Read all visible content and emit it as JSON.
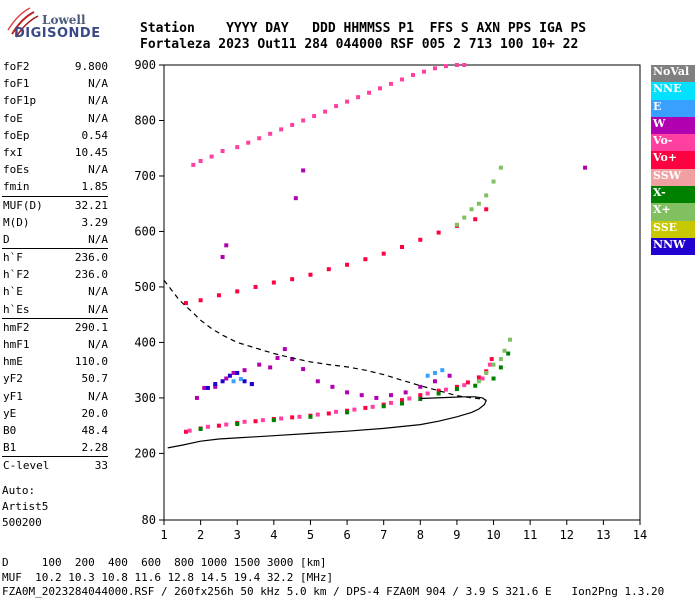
{
  "logo": {
    "line1": "Lowell",
    "line2": "DIGISONDE"
  },
  "header": {
    "line1": "Station    YYYY DAY   DDD HHMMSS P1  FFS S AXN PPS IGA PS",
    "line2": "Fortaleza 2023 Out11 284 044000 RSF 005 2 713 100 10+ 22"
  },
  "params": [
    [
      {
        "name": "foF2",
        "value": "9.800"
      },
      {
        "name": "foF1",
        "value": "N/A"
      },
      {
        "name": "foF1p",
        "value": "N/A"
      },
      {
        "name": "foE",
        "value": "N/A"
      },
      {
        "name": "foEp",
        "value": "0.54"
      },
      {
        "name": "fxI",
        "value": "10.45"
      },
      {
        "name": "foEs",
        "value": "N/A"
      },
      {
        "name": "fmin",
        "value": "1.85"
      }
    ],
    [
      {
        "name": "MUF(D)",
        "value": "32.21"
      },
      {
        "name": "M(D)",
        "value": "3.29"
      },
      {
        "name": "D",
        "value": "N/A"
      }
    ],
    [
      {
        "name": "h`F",
        "value": "236.0"
      },
      {
        "name": "h`F2",
        "value": "236.0"
      },
      {
        "name": "h`E",
        "value": "N/A"
      },
      {
        "name": "h`Es",
        "value": "N/A"
      }
    ],
    [
      {
        "name": "hmF2",
        "value": "290.1"
      },
      {
        "name": "hmF1",
        "value": "N/A"
      },
      {
        "name": "hmE",
        "value": "110.0"
      },
      {
        "name": "yF2",
        "value": "50.7"
      },
      {
        "name": "yF1",
        "value": "N/A"
      },
      {
        "name": "yE",
        "value": "20.0"
      },
      {
        "name": "B0",
        "value": "48.4"
      },
      {
        "name": "B1",
        "value": "2.28"
      }
    ],
    [
      {
        "name": "C-level",
        "value": "33"
      }
    ]
  ],
  "auto": {
    "l1": "Auto:",
    "l2": "Artist5",
    "l3": "500200"
  },
  "legend": [
    {
      "label": "NoVal",
      "color": "#808080"
    },
    {
      "label": "NNE",
      "color": "#00e0ff"
    },
    {
      "label": "E",
      "color": "#3aa0ff"
    },
    {
      "label": "W",
      "color": "#b000b0"
    },
    {
      "label": "Vo-",
      "color": "#ff40a0"
    },
    {
      "label": "Vo+",
      "color": "#ff0040"
    },
    {
      "label": "SSW",
      "color": "#f0a0a0"
    },
    {
      "label": "X-",
      "color": "#008000"
    },
    {
      "label": "X+",
      "color": "#80c060"
    },
    {
      "label": "SSE",
      "color": "#c8c800"
    },
    {
      "label": "NNW",
      "color": "#2000d0"
    }
  ],
  "footer": {
    "l1": "D     100  200  400  600  800 1000 1500 3000 [km]",
    "l2": "MUF  10.2 10.3 10.8 11.6 12.8 14.5 19.4 32.2 [MHz]",
    "l3": "FZA0M_2023284044000.RSF / 260fx256h 50 kHz 5.0 km / DPS-4 FZA0M 904 / 3.9 S 321.6 E   Ion2Png 1.3.20"
  },
  "chart_data": {
    "type": "scatter",
    "title": "",
    "xlabel": "",
    "ylabel": "",
    "xlim": [
      1,
      14
    ],
    "ylim": [
      80,
      900
    ],
    "x_ticks": [
      1,
      2,
      3,
      4,
      5,
      6,
      7,
      8,
      9,
      10,
      11,
      12,
      13,
      14
    ],
    "y_ticks": [
      80,
      200,
      300,
      400,
      500,
      600,
      700,
      800,
      900
    ],
    "grid": false,
    "legend_position": "right",
    "series": [
      {
        "color": "#ff0040",
        "x": [
          1.6,
          2.0,
          2.5,
          3.0,
          3.5,
          4.0,
          4.5,
          5.0,
          5.5,
          6.0,
          6.5,
          7.0,
          7.5,
          8.0,
          8.5,
          9.0,
          9.3,
          9.6,
          9.8,
          9.95
        ],
        "y": [
          239,
          245,
          250,
          255,
          258,
          262,
          265,
          268,
          272,
          277,
          282,
          288,
          296,
          305,
          313,
          320,
          328,
          337,
          348,
          370
        ]
      },
      {
        "color": "#ff40a0",
        "x": [
          1.7,
          2.2,
          2.7,
          3.2,
          3.7,
          4.2,
          4.7,
          5.2,
          5.7,
          6.2,
          6.7,
          7.2,
          7.7,
          8.2,
          8.7,
          9.2,
          9.7,
          9.9
        ],
        "y": [
          241,
          248,
          252,
          257,
          260,
          263,
          266,
          270,
          275,
          279,
          284,
          291,
          299,
          308,
          315,
          323,
          335,
          360
        ]
      },
      {
        "color": "#b000b0",
        "x": [
          1.9,
          2.1,
          2.4,
          2.7,
          2.9,
          3.2,
          3.4,
          3.6,
          3.9,
          4.1,
          4.3,
          4.5,
          4.8,
          5.2,
          5.6,
          6.0,
          6.4,
          6.8,
          7.2,
          7.6,
          8.0,
          8.4,
          8.8
        ],
        "y": [
          300,
          318,
          320,
          335,
          345,
          350,
          325,
          360,
          355,
          372,
          388,
          370,
          352,
          330,
          320,
          310,
          305,
          300,
          305,
          310,
          320,
          330,
          340
        ]
      },
      {
        "color": "#2000d0",
        "x": [
          2.2,
          2.4,
          2.6,
          2.8,
          3.0,
          3.2,
          3.4
        ],
        "y": [
          318,
          325,
          330,
          340,
          345,
          330,
          325
        ]
      },
      {
        "color": "#3aa0ff",
        "x": [
          2.9,
          3.1,
          8.2,
          8.4,
          8.6
        ],
        "y": [
          330,
          334,
          340,
          345,
          350
        ]
      },
      {
        "color": "#008000",
        "x": [
          2.0,
          3.0,
          4.0,
          5.0,
          6.0,
          7.0,
          7.5,
          8.0,
          8.5,
          9.0,
          9.5,
          10.0,
          10.2,
          10.4
        ],
        "y": [
          244,
          253,
          260,
          266,
          274,
          285,
          290,
          298,
          308,
          316,
          322,
          335,
          355,
          380
        ]
      },
      {
        "color": "#80c060",
        "x": [
          9.6,
          9.8,
          10.0,
          10.2,
          10.3,
          10.45
        ],
        "y": [
          330,
          345,
          360,
          370,
          385,
          405
        ]
      },
      {
        "color": "#ff0040",
        "x": [
          1.6,
          2.0,
          2.5,
          3.0,
          3.5,
          4.0,
          4.5,
          5.0,
          5.5,
          6.0,
          6.5,
          7.0,
          7.5,
          8.0,
          8.5,
          9.0,
          9.5,
          9.8
        ],
        "y": [
          471,
          476,
          485,
          492,
          500,
          508,
          514,
          522,
          532,
          540,
          550,
          560,
          572,
          585,
          598,
          610,
          622,
          640
        ]
      },
      {
        "color": "#80c060",
        "x": [
          9.0,
          9.2,
          9.4,
          9.6,
          9.8,
          10.0,
          10.2
        ],
        "y": [
          612,
          625,
          640,
          650,
          665,
          690,
          715
        ]
      },
      {
        "color": "#ff40a0",
        "x": [
          1.8,
          2.0,
          2.3,
          2.6,
          3.0,
          3.3,
          3.6,
          3.9,
          4.2,
          4.5,
          4.8,
          5.1,
          5.4,
          5.7,
          6.0,
          6.3,
          6.6,
          6.9,
          7.2,
          7.5,
          7.8,
          8.1,
          8.4,
          8.7,
          9.0,
          9.2
        ],
        "y": [
          720,
          727,
          735,
          745,
          752,
          760,
          768,
          776,
          784,
          792,
          800,
          808,
          816,
          826,
          834,
          842,
          850,
          858,
          866,
          874,
          882,
          888,
          894,
          898,
          900,
          900
        ]
      },
      {
        "color": "#b000b0",
        "x": [
          2.6,
          2.7,
          4.6,
          4.8,
          12.5
        ],
        "y": [
          554,
          575,
          660,
          710,
          715
        ]
      }
    ],
    "computed_curves": [
      {
        "name": "profile",
        "x": [
          1.1,
          1.5,
          2.0,
          2.5,
          3.0,
          3.5,
          4.0,
          5.0,
          6.0,
          7.0,
          8.0,
          8.5,
          9.0,
          9.4,
          9.6,
          9.75,
          9.8,
          9.7,
          9.5,
          9.2,
          8.8,
          8.0
        ],
        "y": [
          210,
          215,
          222,
          226,
          228,
          230,
          232,
          236,
          240,
          245,
          252,
          258,
          266,
          274,
          280,
          288,
          295,
          300,
          302,
          302,
          301,
          299
        ]
      },
      {
        "name": "dashed",
        "dash": true,
        "x": [
          1.0,
          1.2,
          1.4,
          1.6,
          1.8,
          2.0,
          2.3,
          2.6,
          3.0,
          3.5,
          4.0,
          4.5,
          5.0,
          5.5,
          6.0,
          6.5,
          7.0,
          7.5,
          8.0,
          8.5,
          9.0,
          9.4,
          9.7,
          9.8
        ],
        "y": [
          512,
          495,
          478,
          465,
          453,
          440,
          425,
          413,
          400,
          390,
          380,
          372,
          365,
          360,
          356,
          350,
          342,
          332,
          322,
          313,
          304,
          300,
          298,
          296
        ]
      }
    ]
  }
}
